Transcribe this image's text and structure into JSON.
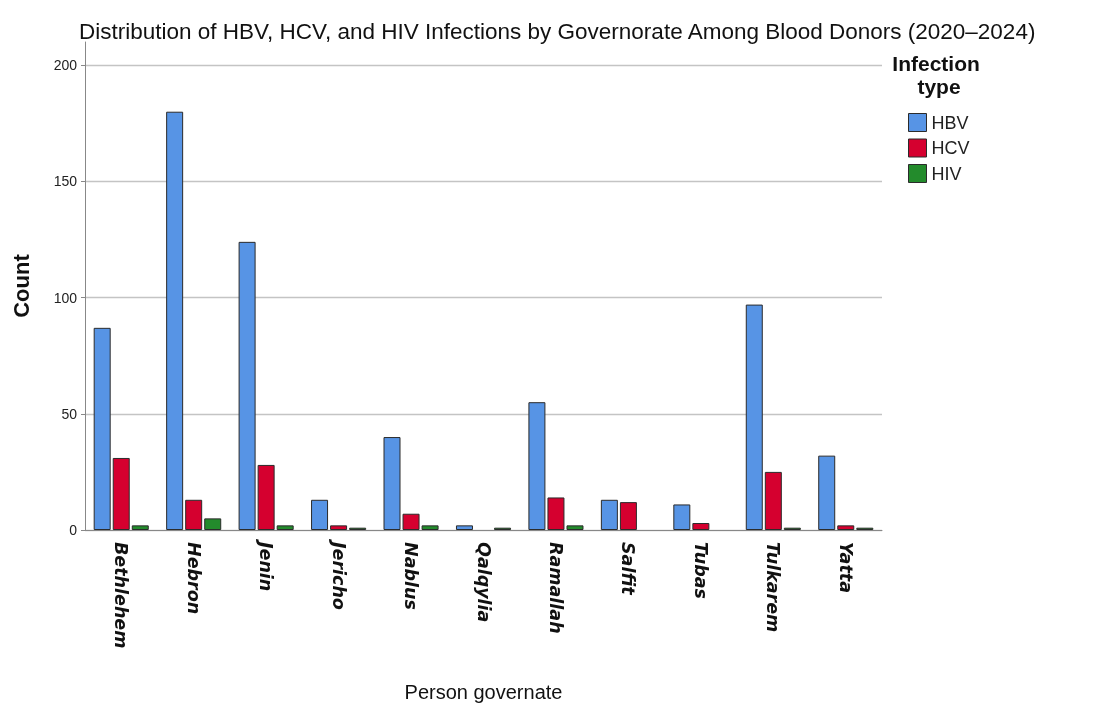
{
  "chart_data": {
    "type": "bar",
    "title": "Distribution of HBV, HCV, and HIV Infections by Governorate Among Blood Donors (2020–2024)",
    "xlabel": "Person governate",
    "ylabel": "Count",
    "legend_title": "Infection type",
    "categories": [
      "Bethlehem",
      "Hebron",
      "Jenin",
      "Jericho",
      "Nablus",
      "Qalqylia",
      "Ramallah",
      "Salfit",
      "Tubas",
      "Tulkarem",
      "Yatta"
    ],
    "series": [
      {
        "name": "HBV",
        "color": "#5794e5",
        "values": [
          87,
          180,
          124,
          13,
          40,
          2,
          55,
          13,
          11,
          97,
          32
        ]
      },
      {
        "name": "HCV",
        "color": "#d5002f",
        "values": [
          31,
          13,
          28,
          2,
          7,
          null,
          14,
          12,
          3,
          25,
          2
        ]
      },
      {
        "name": "HIV",
        "color": "#238b2c",
        "values": [
          2,
          5,
          2,
          1,
          2,
          1,
          2,
          null,
          null,
          1,
          1
        ]
      }
    ],
    "ylim": [
      0,
      210
    ],
    "yticks": [
      0,
      50,
      100,
      150,
      200
    ],
    "grid": "y",
    "legend": "top right"
  }
}
